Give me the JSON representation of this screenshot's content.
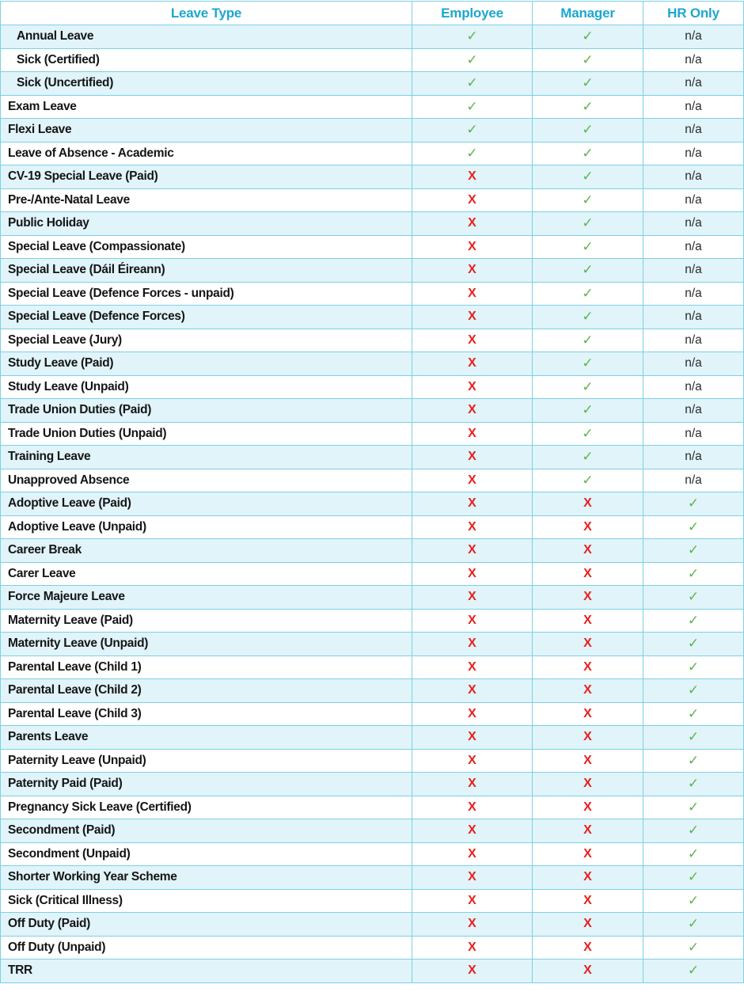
{
  "table": {
    "columns": [
      {
        "key": "label",
        "label": "Leave Type"
      },
      {
        "key": "employee",
        "label": "Employee"
      },
      {
        "key": "manager",
        "label": "Manager"
      },
      {
        "key": "hr",
        "label": "HR Only"
      }
    ],
    "symbols": {
      "check": "✓",
      "x": "X",
      "na": "n/a"
    },
    "colors": {
      "header_text": "#1BA7CE",
      "border": "#7DD0E4",
      "stripe": "#E0F4FA",
      "check": "#5CB54A",
      "cross": "#E8211D",
      "na_text": "#2B2B2B"
    },
    "rows": [
      {
        "label": "Annual Leave",
        "indent": true,
        "employee": "check",
        "manager": "check",
        "hr": "na"
      },
      {
        "label": "Sick (Certified)",
        "indent": true,
        "employee": "check",
        "manager": "check",
        "hr": "na"
      },
      {
        "label": "Sick (Uncertified)",
        "indent": true,
        "employee": "check",
        "manager": "check",
        "hr": "na"
      },
      {
        "label": "Exam Leave",
        "indent": false,
        "employee": "check",
        "manager": "check",
        "hr": "na"
      },
      {
        "label": "Flexi Leave",
        "indent": false,
        "employee": "check",
        "manager": "check",
        "hr": "na"
      },
      {
        "label": "Leave of Absence - Academic",
        "indent": false,
        "employee": "check",
        "manager": "check",
        "hr": "na"
      },
      {
        "label": "CV-19 Special Leave (Paid)",
        "indent": false,
        "employee": "x",
        "manager": "check",
        "hr": "na"
      },
      {
        "label": "Pre-/Ante-Natal Leave",
        "indent": false,
        "employee": "x",
        "manager": "check",
        "hr": "na"
      },
      {
        "label": "Public Holiday",
        "indent": false,
        "employee": "x",
        "manager": "check",
        "hr": "na"
      },
      {
        "label": "Special Leave (Compassionate)",
        "indent": false,
        "employee": "x",
        "manager": "check",
        "hr": "na"
      },
      {
        "label": "Special Leave (Dáil Éireann)",
        "indent": false,
        "employee": "x",
        "manager": "check",
        "hr": "na"
      },
      {
        "label": "Special Leave (Defence Forces - unpaid)",
        "indent": false,
        "employee": "x",
        "manager": "check",
        "hr": "na"
      },
      {
        "label": "Special Leave (Defence Forces)",
        "indent": false,
        "employee": "x",
        "manager": "check",
        "hr": "na"
      },
      {
        "label": "Special Leave (Jury)",
        "indent": false,
        "employee": "x",
        "manager": "check",
        "hr": "na"
      },
      {
        "label": "Study Leave (Paid)",
        "indent": false,
        "employee": "x",
        "manager": "check",
        "hr": "na"
      },
      {
        "label": "Study Leave (Unpaid)",
        "indent": false,
        "employee": "x",
        "manager": "check",
        "hr": "na"
      },
      {
        "label": "Trade Union Duties (Paid)",
        "indent": false,
        "employee": "x",
        "manager": "check",
        "hr": "na"
      },
      {
        "label": "Trade Union Duties (Unpaid)",
        "indent": false,
        "employee": "x",
        "manager": "check",
        "hr": "na"
      },
      {
        "label": "Training Leave",
        "indent": false,
        "employee": "x",
        "manager": "check",
        "hr": "na"
      },
      {
        "label": "Unapproved Absence",
        "indent": false,
        "employee": "x",
        "manager": "check",
        "hr": "na"
      },
      {
        "label": "Adoptive Leave (Paid)",
        "indent": false,
        "employee": "x",
        "manager": "x",
        "hr": "check"
      },
      {
        "label": "Adoptive Leave (Unpaid)",
        "indent": false,
        "employee": "x",
        "manager": "x",
        "hr": "check"
      },
      {
        "label": "Career Break",
        "indent": false,
        "employee": "x",
        "manager": "x",
        "hr": "check"
      },
      {
        "label": "Carer Leave",
        "indent": false,
        "employee": "x",
        "manager": "x",
        "hr": "check"
      },
      {
        "label": "Force Majeure Leave",
        "indent": false,
        "employee": "x",
        "manager": "x",
        "hr": "check"
      },
      {
        "label": "Maternity Leave (Paid)",
        "indent": false,
        "employee": "x",
        "manager": "x",
        "hr": "check"
      },
      {
        "label": "Maternity Leave (Unpaid)",
        "indent": false,
        "employee": "x",
        "manager": "x",
        "hr": "check"
      },
      {
        "label": "Parental Leave (Child 1)",
        "indent": false,
        "employee": "x",
        "manager": "x",
        "hr": "check"
      },
      {
        "label": "Parental Leave (Child 2)",
        "indent": false,
        "employee": "x",
        "manager": "x",
        "hr": "check"
      },
      {
        "label": "Parental Leave (Child 3)",
        "indent": false,
        "employee": "x",
        "manager": "x",
        "hr": "check"
      },
      {
        "label": "Parents Leave",
        "indent": false,
        "employee": "x",
        "manager": "x",
        "hr": "check"
      },
      {
        "label": "Paternity Leave (Unpaid)",
        "indent": false,
        "employee": "x",
        "manager": "x",
        "hr": "check"
      },
      {
        "label": "Paternity Paid (Paid)",
        "indent": false,
        "employee": "x",
        "manager": "x",
        "hr": "check"
      },
      {
        "label": "Pregnancy Sick Leave (Certified)",
        "indent": false,
        "employee": "x",
        "manager": "x",
        "hr": "check"
      },
      {
        "label": "Secondment (Paid)",
        "indent": false,
        "employee": "x",
        "manager": "x",
        "hr": "check"
      },
      {
        "label": "Secondment (Unpaid)",
        "indent": false,
        "employee": "x",
        "manager": "x",
        "hr": "check"
      },
      {
        "label": "Shorter Working Year Scheme",
        "indent": false,
        "employee": "x",
        "manager": "x",
        "hr": "check"
      },
      {
        "label": "Sick (Critical Illness)",
        "indent": false,
        "employee": "x",
        "manager": "x",
        "hr": "check"
      },
      {
        "label": "Off Duty (Paid)",
        "indent": false,
        "employee": "x",
        "manager": "x",
        "hr": "check"
      },
      {
        "label": "Off Duty (Unpaid)",
        "indent": false,
        "employee": "x",
        "manager": "x",
        "hr": "check"
      },
      {
        "label": "TRR",
        "indent": false,
        "employee": "x",
        "manager": "x",
        "hr": "check"
      }
    ]
  }
}
